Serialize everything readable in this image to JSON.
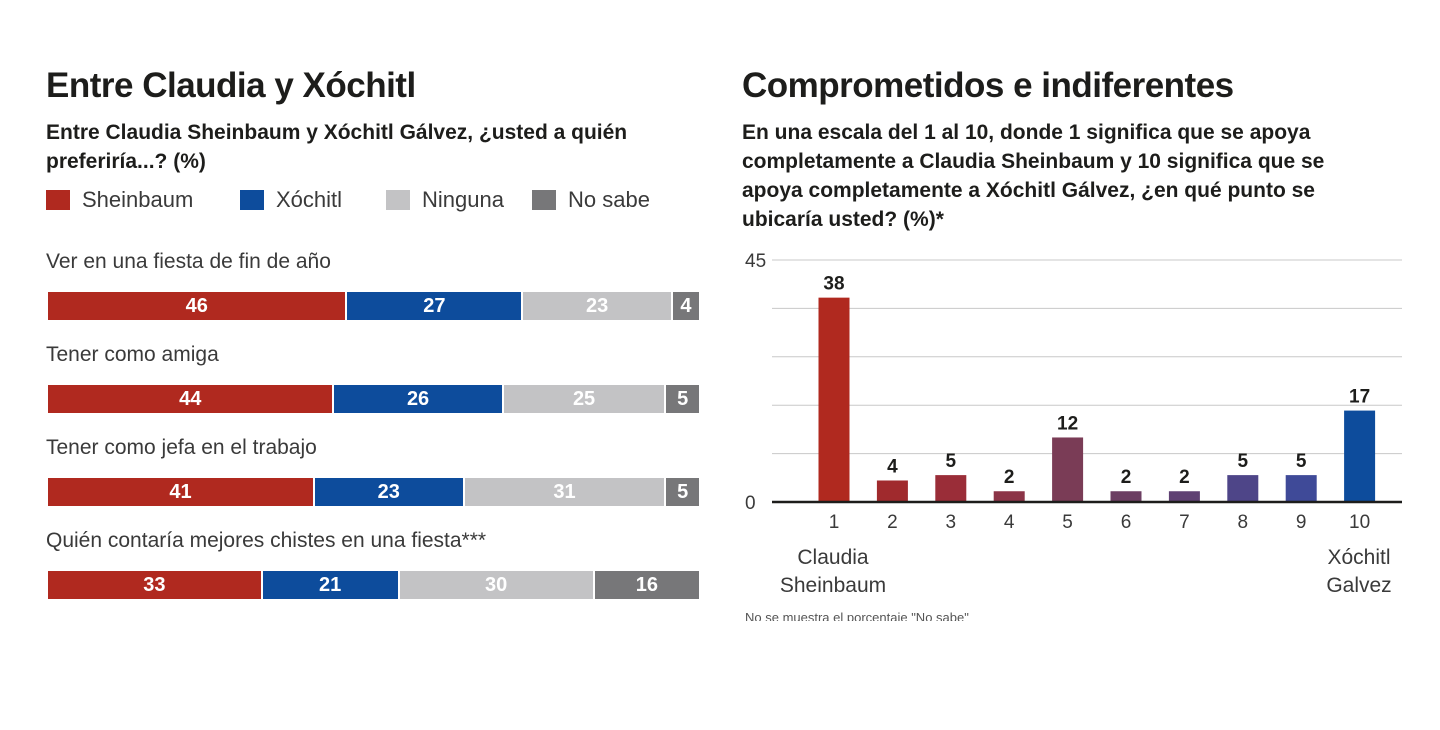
{
  "left_panel": {
    "title": "Entre Claudia y Xóchitl",
    "subtitle": "Entre Claudia Sheinbaum y Xóchitl Gálvez, ¿usted a quién preferiría...? (%)",
    "legend": [
      {
        "label": "Sheinbaum",
        "color": "#b0291f"
      },
      {
        "label": "Xóchitl",
        "color": "#0d4c9c"
      },
      {
        "label": "Ninguna",
        "color": "#c3c3c5"
      },
      {
        "label": "No sabe",
        "color": "#777779"
      }
    ]
  },
  "right_panel": {
    "title": "Comprometidos e indiferentes",
    "subtitle": "En una escala del 1 al 10, donde 1 significa que se apoya completamente a Claudia Sheinbaum y 10 significa que se apoya completamente a Xóchitl Gálvez, ¿en qué punto se ubicaría usted? (%)*",
    "left_end_label": "Claudia\nSheinbaum",
    "right_end_label": "Xóchitl\nGalvez",
    "footnote": "No se muestra el porcentaje \"No sabe\""
  },
  "chart_data": [
    {
      "type": "bar",
      "orientation": "horizontal-stacked",
      "categories": [
        "Ver en una fiesta de fin de año",
        "Tener como amiga",
        "Tener como jefa en el trabajo",
        "Quién contaría mejores chistes en una fiesta***"
      ],
      "series": [
        {
          "name": "Sheinbaum",
          "values": [
            46,
            44,
            41,
            33
          ],
          "color": "#b0291f"
        },
        {
          "name": "Xóchitl",
          "values": [
            27,
            26,
            23,
            21
          ],
          "color": "#0d4c9c"
        },
        {
          "name": "Ninguna",
          "values": [
            23,
            25,
            31,
            30
          ],
          "color": "#c3c3c5"
        },
        {
          "name": "No sabe",
          "values": [
            4,
            5,
            5,
            16
          ],
          "color": "#777779"
        }
      ]
    },
    {
      "type": "bar",
      "categories": [
        "1",
        "2",
        "3",
        "4",
        "5",
        "6",
        "7",
        "8",
        "9",
        "10"
      ],
      "values": [
        38,
        4,
        5,
        2,
        12,
        2,
        2,
        5,
        5,
        17
      ],
      "colors": [
        "#b0291f",
        "#a02a2d",
        "#9a2d38",
        "#8c3447",
        "#7a3c56",
        "#6c3e62",
        "#5f4173",
        "#4e4588",
        "#3f4a98",
        "#0d4c9c"
      ],
      "ylim": [
        0,
        45
      ],
      "yticks": [
        "0",
        "45"
      ],
      "grid": true
    }
  ]
}
